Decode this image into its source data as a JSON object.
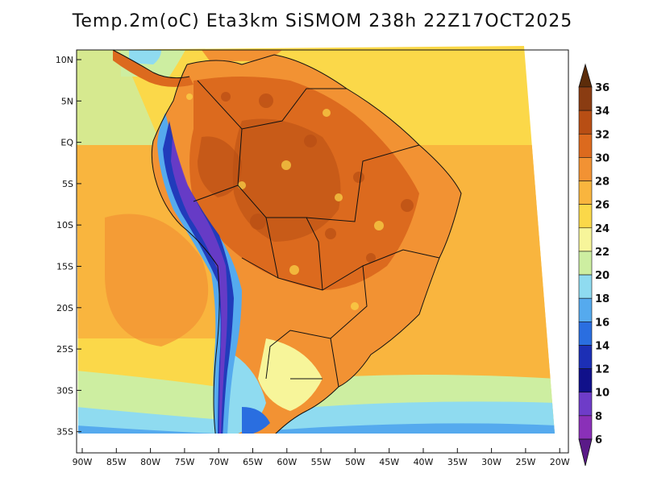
{
  "title": "Temp.2m(oC) Eta3km SiSMOM 238h 22Z17OCT2025",
  "map": {
    "lat_labels": [
      "10N",
      "5N",
      "EQ",
      "5S",
      "10S",
      "15S",
      "20S",
      "25S",
      "30S",
      "35S"
    ],
    "lon_labels": [
      "90W",
      "85W",
      "80W",
      "75W",
      "70W",
      "65W",
      "60W",
      "55W",
      "50W",
      "45W",
      "40W",
      "35W",
      "30W",
      "25W",
      "20W"
    ]
  },
  "colorbar": {
    "labels": [
      "36",
      "34",
      "32",
      "30",
      "28",
      "26",
      "24",
      "22",
      "20",
      "18",
      "16",
      "14",
      "12",
      "10",
      "8",
      "6"
    ],
    "colors": [
      "#5c2c0a",
      "#8a3c12",
      "#b84e14",
      "#dc6a1e",
      "#f29233",
      "#f9b53e",
      "#fbd849",
      "#f7f59a",
      "#cdeea1",
      "#8fdbf0",
      "#55aaee",
      "#2a6ee0",
      "#1c2fb5",
      "#10108a",
      "#6e3cc8",
      "#8a30b8",
      "#5a1a88"
    ]
  }
}
